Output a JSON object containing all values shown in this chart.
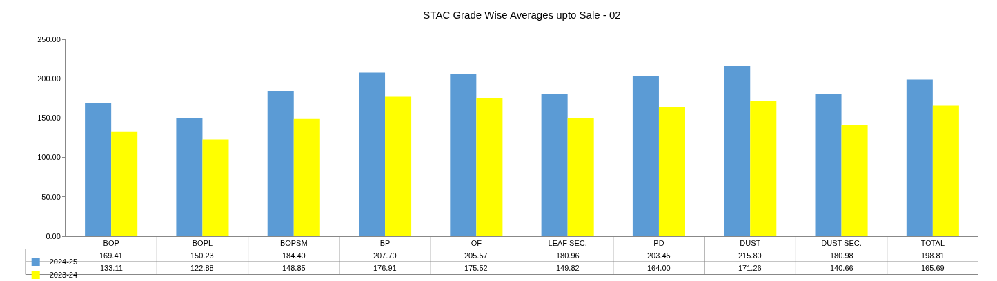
{
  "chart_data": {
    "type": "bar",
    "title": "STAC Grade Wise Averages upto Sale - 02",
    "categories": [
      "BOP",
      "BOPL",
      "BOPSM",
      "BP",
      "OF",
      "LEAF SEC.",
      "PD",
      "DUST",
      "DUST SEC.",
      "TOTAL"
    ],
    "series": [
      {
        "name": "2024-25",
        "color": "#5b9bd5",
        "values": [
          169.41,
          150.23,
          184.4,
          207.7,
          205.57,
          180.96,
          203.45,
          215.8,
          180.98,
          198.81
        ],
        "value_labels": [
          "169.41",
          "150.23",
          "184.40",
          "207.70",
          "205.57",
          "180.96",
          "203.45",
          "215.80",
          "180.98",
          "198.81"
        ]
      },
      {
        "name": "2023-24",
        "color": "#ffff00",
        "values": [
          133.11,
          122.88,
          148.85,
          176.91,
          175.52,
          149.82,
          164.0,
          171.26,
          140.66,
          165.69
        ],
        "value_labels": [
          "133.11",
          "122.88",
          "148.85",
          "176.91",
          "175.52",
          "149.82",
          "164.00",
          "171.26",
          "140.66",
          "165.69"
        ]
      }
    ],
    "ylim": [
      0,
      250
    ],
    "yticks": [
      {
        "value": 0,
        "label": "0.00"
      },
      {
        "value": 50,
        "label": "50.00"
      },
      {
        "value": 100,
        "label": "100.00"
      },
      {
        "value": 150,
        "label": "150.00"
      },
      {
        "value": 200,
        "label": "200.00"
      },
      {
        "value": 250,
        "label": "250.00"
      }
    ],
    "legend": "bottom left"
  }
}
